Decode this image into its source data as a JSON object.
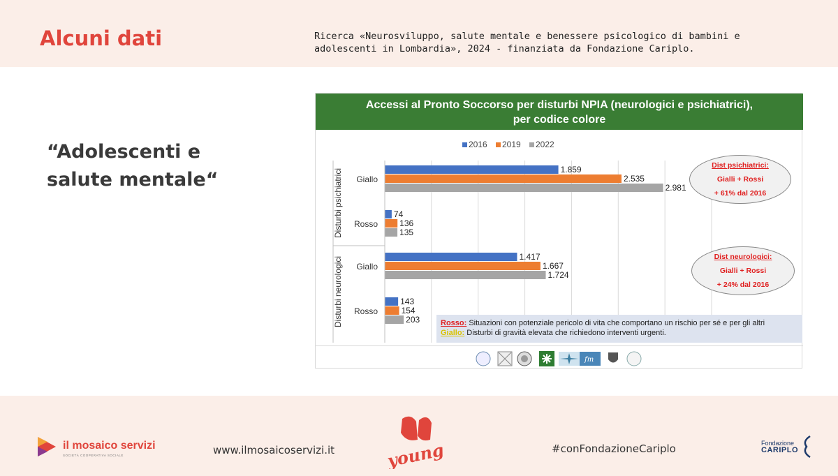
{
  "header": {
    "title": "Alcuni dati",
    "source_note": "Ricerca «Neurosviluppo, salute mentale e benessere psicologico di bambini e adolescenti in Lombardia», 2024 - finanziata da Fondazione Cariplo."
  },
  "quote": "“Adolescenti e salute mentale“",
  "chart_data": {
    "type": "bar",
    "orientation": "horizontal",
    "title": "Accessi al Pronto Soccorso per disturbi NPIA (neurologici e psichiatrici), per codice colore",
    "title_line1": "Accessi al Pronto Soccorso per disturbi NPIA (neurologici e psichiatrici),",
    "title_line2": "per codice colore",
    "groups": [
      "Disturbi psichiatrici",
      "Disturbi neurologici"
    ],
    "categories": [
      "Giallo",
      "Rosso",
      "Giallo",
      "Rosso"
    ],
    "series": [
      {
        "name": "2016",
        "color": "#4472c4",
        "values": [
          1859,
          74,
          1417,
          143
        ],
        "labels": [
          "1.859",
          "74",
          "1.417",
          "143"
        ]
      },
      {
        "name": "2019",
        "color": "#ed7d31",
        "values": [
          2535,
          136,
          1667,
          154
        ],
        "labels": [
          "2.535",
          "136",
          "1.667",
          "154"
        ]
      },
      {
        "name": "2022",
        "color": "#a5a5a5",
        "values": [
          2981,
          135,
          1724,
          203
        ],
        "labels": [
          "2.981",
          "135",
          "1.724",
          "203"
        ]
      }
    ],
    "xlim": [
      0,
      3500
    ],
    "grid": true,
    "legend": "top-center"
  },
  "annotations": {
    "psichiatrici": {
      "line1": "Dist psichiatrici:",
      "line2": "Gialli + Rossi",
      "line3": "+ 61% dal 2016"
    },
    "neurologici": {
      "line1": "Dist neurologici:",
      "line2": "Gialli + Rossi",
      "line3": "+ 24% dal 2016"
    }
  },
  "color_key": {
    "rosso_label": "Rosso:",
    "rosso_text": " Situazioni con potenziale pericolo di vita che comportano un rischio per sé e per gli altri",
    "giallo_label": "Giallo:",
    "giallo_text": " Disturbi di gravità elevata che richiedono interventi urgenti."
  },
  "footer": {
    "brand": "il mosaico servizi",
    "brand_sub": "SOCIETÀ COOPERATIVA SOCIALE",
    "website": "www.ilmosaicoservizi.it",
    "hashtag": "#conFondazioneCariplo",
    "fc_small": "Fondazione",
    "fc_big": "CARIPLO"
  },
  "colors": {
    "accent": "#e0453c",
    "header_green": "#3a7d34",
    "band": "#fbeee8"
  }
}
